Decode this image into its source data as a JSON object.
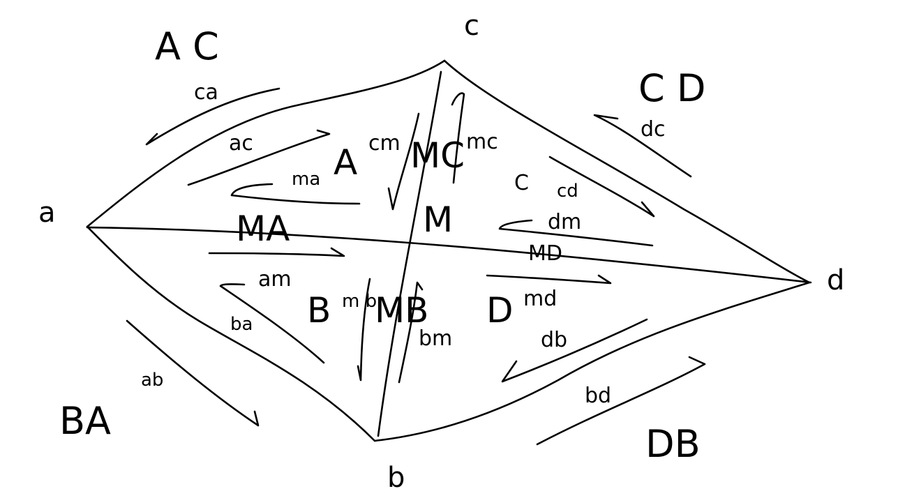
{
  "vertices": {
    "a": "a",
    "b": "b",
    "c": "c",
    "d": "d"
  },
  "outer_faces": {
    "ac": "A C",
    "cd": "C D",
    "ba": "BA",
    "db": "DB"
  },
  "regions": {
    "a_region": "A",
    "b_region": "B",
    "c_region": "C",
    "d_region": "D",
    "m_region": "M"
  },
  "midline_labels": {
    "ma": "MA",
    "mc": "MC",
    "mb": "MB",
    "md": "MD"
  },
  "edge_labels": {
    "ca": "ca",
    "ac": "ac",
    "ma": "ma",
    "cm": "cm",
    "mc": "mc",
    "dc": "dc",
    "cd": "cd",
    "dm": "dm",
    "am": "am",
    "ba": "ba",
    "ab": "ab",
    "bm_small": "m b",
    "bm": "bm",
    "md": "md",
    "db": "db",
    "bd": "bd"
  },
  "colors": {
    "ink": "#000000",
    "background": "#ffffff"
  }
}
